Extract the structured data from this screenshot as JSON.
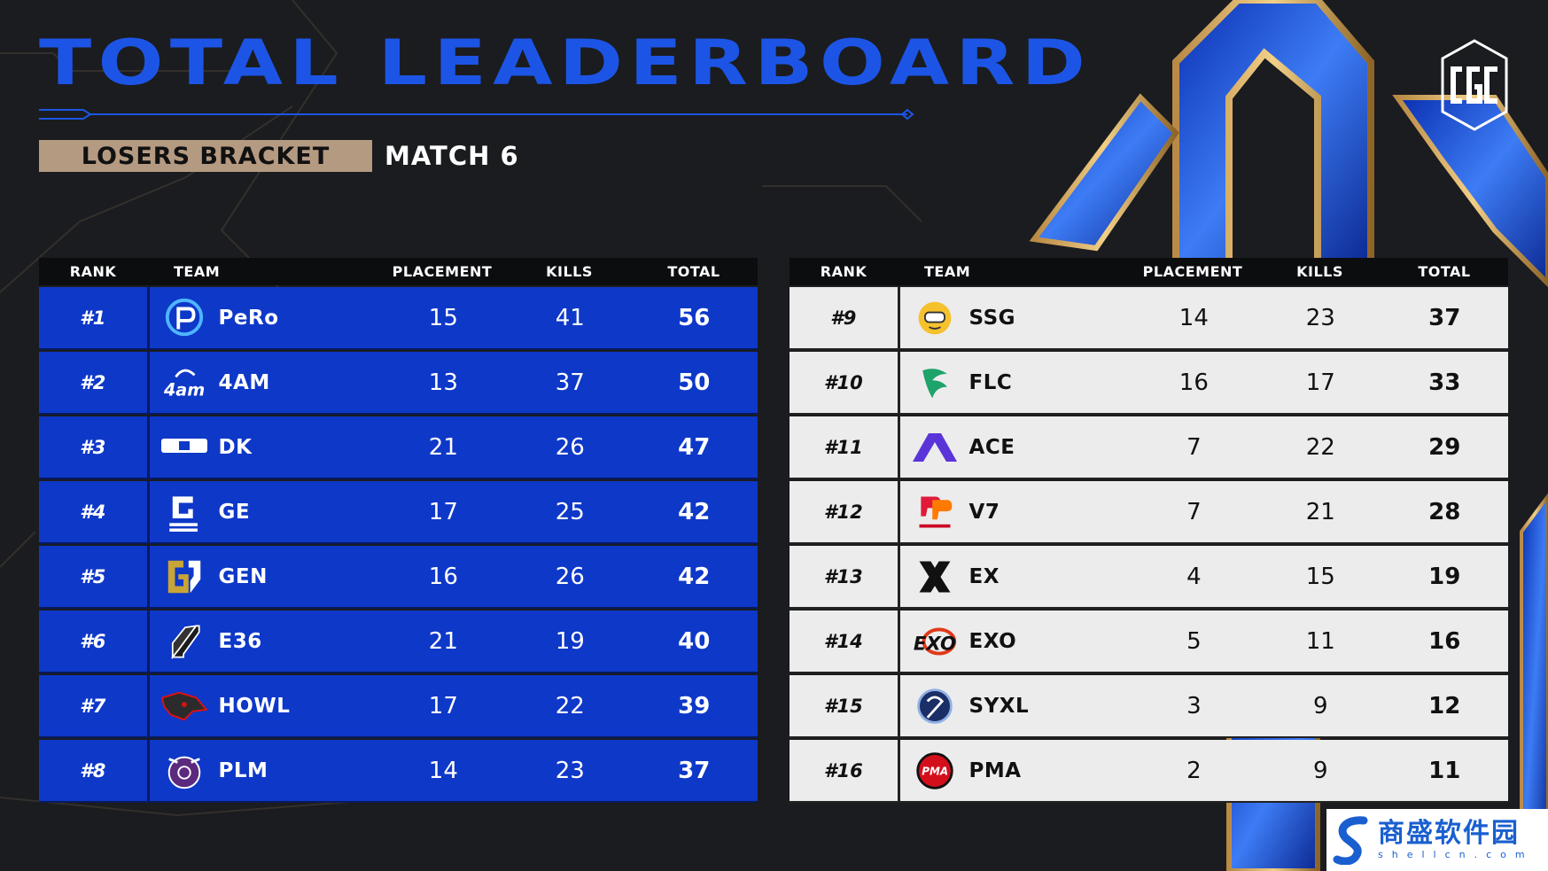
{
  "header": {
    "title": "TOTAL LEADERBOARD",
    "bracket": "LOSERS BRACKET",
    "match": "MATCH 6",
    "logo_text": "CGC"
  },
  "columns": {
    "rank": "RANK",
    "team": "TEAM",
    "placement": "PLACEMENT",
    "kills": "KILLS",
    "total": "TOTAL"
  },
  "left_table": [
    {
      "rank": "#1",
      "team": "PeRo",
      "placement": "15",
      "kills": "41",
      "total": "56",
      "logo_icon": "pero-logo-icon"
    },
    {
      "rank": "#2",
      "team": "4AM",
      "placement": "13",
      "kills": "37",
      "total": "50",
      "logo_icon": "4am-logo-icon"
    },
    {
      "rank": "#3",
      "team": "DK",
      "placement": "21",
      "kills": "26",
      "total": "47",
      "logo_icon": "dk-logo-icon"
    },
    {
      "rank": "#4",
      "team": "GE",
      "placement": "17",
      "kills": "25",
      "total": "42",
      "logo_icon": "ge-logo-icon"
    },
    {
      "rank": "#5",
      "team": "GEN",
      "placement": "16",
      "kills": "26",
      "total": "42",
      "logo_icon": "gen-logo-icon"
    },
    {
      "rank": "#6",
      "team": "E36",
      "placement": "21",
      "kills": "19",
      "total": "40",
      "logo_icon": "e36-logo-icon"
    },
    {
      "rank": "#7",
      "team": "HOWL",
      "placement": "17",
      "kills": "22",
      "total": "39",
      "logo_icon": "howl-logo-icon"
    },
    {
      "rank": "#8",
      "team": "PLM",
      "placement": "14",
      "kills": "23",
      "total": "37",
      "logo_icon": "plm-logo-icon"
    }
  ],
  "right_table": [
    {
      "rank": "#9",
      "team": "SSG",
      "placement": "14",
      "kills": "23",
      "total": "37",
      "logo_icon": "ssg-logo-icon"
    },
    {
      "rank": "#10",
      "team": "FLC",
      "placement": "16",
      "kills": "17",
      "total": "33",
      "logo_icon": "flc-logo-icon"
    },
    {
      "rank": "#11",
      "team": "ACE",
      "placement": "7",
      "kills": "22",
      "total": "29",
      "logo_icon": "ace-logo-icon"
    },
    {
      "rank": "#12",
      "team": "V7",
      "placement": "7",
      "kills": "21",
      "total": "28",
      "logo_icon": "v7-logo-icon"
    },
    {
      "rank": "#13",
      "team": "EX",
      "placement": "4",
      "kills": "15",
      "total": "19",
      "logo_icon": "ex-logo-icon"
    },
    {
      "rank": "#14",
      "team": "EXO",
      "placement": "5",
      "kills": "11",
      "total": "16",
      "logo_icon": "exo-logo-icon"
    },
    {
      "rank": "#15",
      "team": "SYXL",
      "placement": "3",
      "kills": "9",
      "total": "12",
      "logo_icon": "syxl-logo-icon"
    },
    {
      "rank": "#16",
      "team": "PMA",
      "placement": "2",
      "kills": "9",
      "total": "11",
      "logo_icon": "pma-logo-icon"
    }
  ],
  "watermark": {
    "cn": "商盛软件园",
    "en": "shellcn.com"
  },
  "colors": {
    "title_blue": "#1c55e6",
    "left_row_bg": "#0e38c8",
    "right_row_bg": "#ececec",
    "badge_bg": "#b59a82",
    "page_bg": "#1b1c1f"
  }
}
